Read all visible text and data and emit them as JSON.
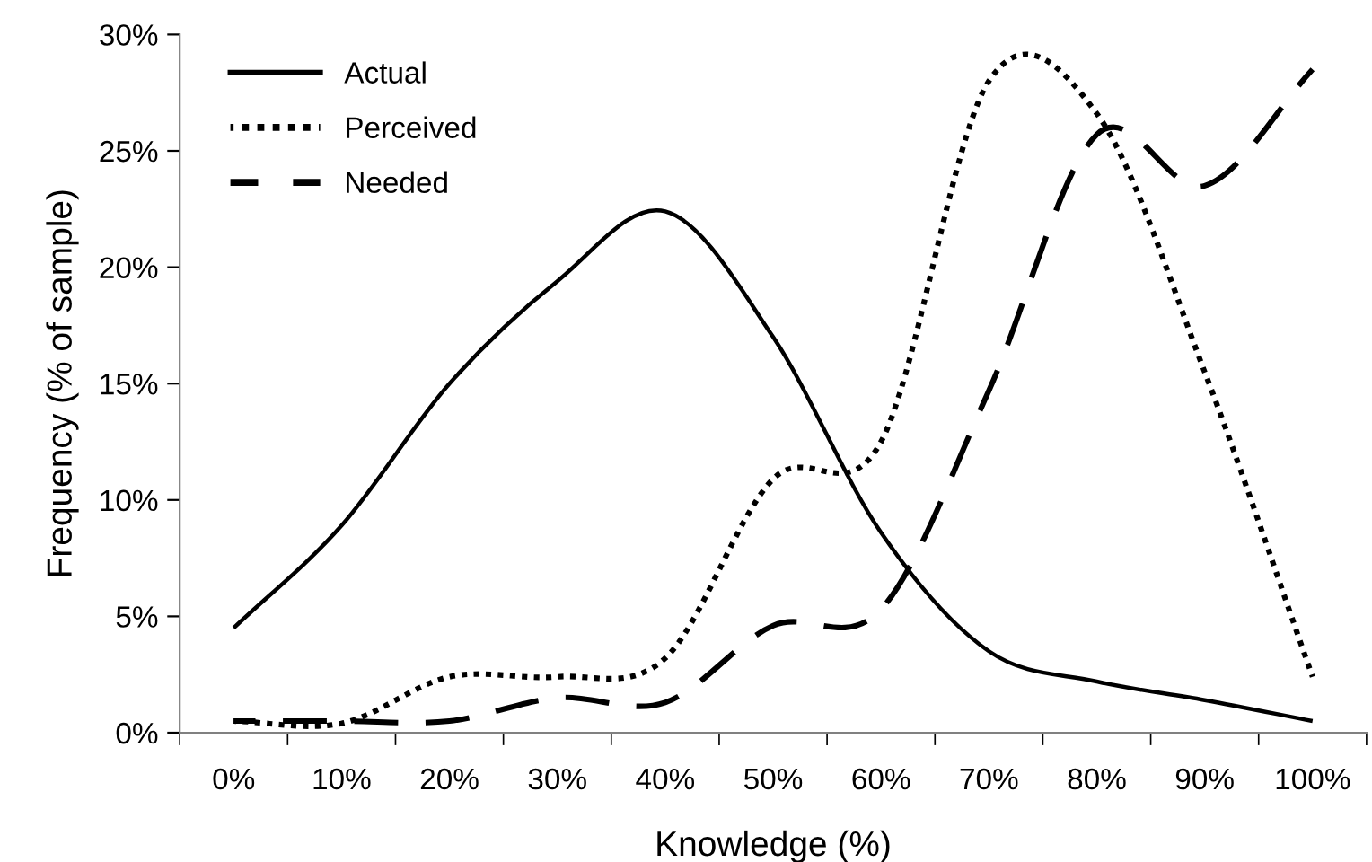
{
  "chart_data": {
    "type": "line",
    "xlabel": "Knowledge (%)",
    "ylabel": "Frequency (% of sample)",
    "categories": [
      "0%",
      "10%",
      "20%",
      "30%",
      "40%",
      "50%",
      "60%",
      "70%",
      "80%",
      "90%",
      "100%"
    ],
    "series": [
      {
        "name": "Actual",
        "color": "#000000",
        "line_style": "solid",
        "values": [
          4.5,
          8.9,
          15,
          19.4,
          22.4,
          17,
          8.6,
          3.5,
          2.2,
          1.4,
          0.5
        ]
      },
      {
        "name": "Perceived",
        "color": "#000000",
        "line_style": "dotted",
        "values": [
          0.5,
          0.4,
          2.4,
          2.4,
          3.2,
          10.9,
          12.5,
          28,
          26.6,
          15.5,
          2.4
        ]
      },
      {
        "name": "Needed",
        "color": "#000000",
        "line_style": "dashed",
        "values": [
          0.5,
          0.5,
          0.5,
          1.5,
          1.3,
          4.6,
          5.3,
          14.7,
          25.7,
          23.5,
          28.5
        ]
      }
    ],
    "ylim": [
      0,
      30
    ],
    "yticks": [
      {
        "value": 0,
        "label": "0%"
      },
      {
        "value": 5,
        "label": "5%"
      },
      {
        "value": 10,
        "label": "10%"
      },
      {
        "value": 15,
        "label": "15%"
      },
      {
        "value": 20,
        "label": "20%"
      },
      {
        "value": 25,
        "label": "25%"
      },
      {
        "value": 30,
        "label": "30%"
      }
    ],
    "grid": false,
    "legend": "top left",
    "marker": "none"
  }
}
